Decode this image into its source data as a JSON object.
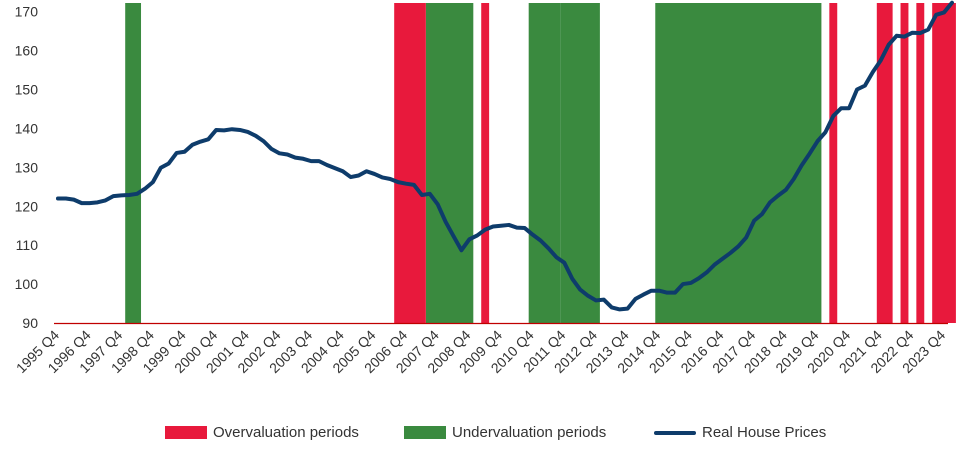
{
  "chart_data": {
    "type": "line",
    "title": "",
    "xlabel": "",
    "ylabel": "",
    "ylim": [
      90,
      173
    ],
    "y_ticks": [
      90,
      100,
      110,
      120,
      130,
      140,
      150,
      160,
      170
    ],
    "x_tick_labels": [
      "1995 Q4",
      "1996 Q4",
      "1997 Q4",
      "1998 Q4",
      "1999 Q4",
      "2000 Q4",
      "2001 Q4",
      "2002 Q4",
      "2003 Q4",
      "2004 Q4",
      "2005 Q4",
      "2006 Q4",
      "2007 Q4",
      "2008 Q4",
      "2009 Q4",
      "2010 Q4",
      "2011 Q4",
      "2012 Q4",
      "2013 Q4",
      "2014 Q4",
      "2015 Q4",
      "2016 Q4",
      "2017 Q4",
      "2018 Q4",
      "2019 Q4",
      "2020 Q4",
      "2021 Q4",
      "2022 Q4",
      "2023 Q4"
    ],
    "grid": false,
    "legend_position": "bottom",
    "colors": {
      "overvaluation": "#e8193c",
      "undervaluation": "#3a8a3f",
      "line": "#0e3c6b",
      "axis": "#c00000"
    },
    "series": [
      {
        "name": "Real House Prices",
        "type": "line",
        "points": [
          [
            "1995 Q4",
            122
          ],
          [
            "1996 Q1",
            122
          ],
          [
            "1996 Q2",
            121.7
          ],
          [
            "1996 Q3",
            120.8
          ],
          [
            "1996 Q4",
            120.8
          ],
          [
            "1997 Q1",
            121
          ],
          [
            "1997 Q2",
            121.5
          ],
          [
            "1997 Q3",
            122.6
          ],
          [
            "1997 Q4",
            122.8
          ],
          [
            "1998 Q1",
            122.9
          ],
          [
            "1998 Q2",
            123.2
          ],
          [
            "1998 Q3",
            124.5
          ],
          [
            "1998 Q4",
            126.2
          ],
          [
            "1999 Q1",
            129.9
          ],
          [
            "1999 Q2",
            131
          ],
          [
            "1999 Q3",
            133.7
          ],
          [
            "1999 Q4",
            134
          ],
          [
            "2000 Q1",
            135.8
          ],
          [
            "2000 Q2",
            136.6
          ],
          [
            "2000 Q3",
            137.2
          ],
          [
            "2000 Q4",
            139.6
          ],
          [
            "2001 Q1",
            139.5
          ],
          [
            "2001 Q2",
            139.8
          ],
          [
            "2001 Q3",
            139.6
          ],
          [
            "2001 Q4",
            139.1
          ],
          [
            "2002 Q1",
            138.1
          ],
          [
            "2002 Q2",
            136.7
          ],
          [
            "2002 Q3",
            134.7
          ],
          [
            "2002 Q4",
            133.6
          ],
          [
            "2003 Q1",
            133.3
          ],
          [
            "2003 Q2",
            132.5
          ],
          [
            "2003 Q3",
            132.2
          ],
          [
            "2003 Q4",
            131.6
          ],
          [
            "2004 Q1",
            131.6
          ],
          [
            "2004 Q2",
            130.6
          ],
          [
            "2004 Q3",
            129.8
          ],
          [
            "2004 Q4",
            129
          ],
          [
            "2005 Q1",
            127.5
          ],
          [
            "2005 Q2",
            127.9
          ],
          [
            "2005 Q3",
            129
          ],
          [
            "2005 Q4",
            128.3
          ],
          [
            "2006 Q1",
            127.4
          ],
          [
            "2006 Q2",
            127
          ],
          [
            "2006 Q3",
            126.2
          ],
          [
            "2006 Q4",
            125.8
          ],
          [
            "2007 Q1",
            125.5
          ],
          [
            "2007 Q2",
            122.9
          ],
          [
            "2007 Q3",
            123.2
          ],
          [
            "2007 Q4",
            120.5
          ],
          [
            "2008 Q1",
            116
          ],
          [
            "2008 Q2",
            112.3
          ],
          [
            "2008 Q3",
            108.7
          ],
          [
            "2008 Q4",
            111.5
          ],
          [
            "2009 Q1",
            112.5
          ],
          [
            "2009 Q2",
            114
          ],
          [
            "2009 Q3",
            114.8
          ],
          [
            "2009 Q4",
            115
          ],
          [
            "2010 Q1",
            115.2
          ],
          [
            "2010 Q2",
            114.5
          ],
          [
            "2010 Q3",
            114.4
          ],
          [
            "2010 Q4",
            112.7
          ],
          [
            "2011 Q1",
            111.2
          ],
          [
            "2011 Q2",
            109.2
          ],
          [
            "2011 Q3",
            106.9
          ],
          [
            "2011 Q4",
            105.5
          ],
          [
            "2012 Q1",
            101.4
          ],
          [
            "2012 Q2",
            98.6
          ],
          [
            "2012 Q3",
            97
          ],
          [
            "2012 Q4",
            95.8
          ],
          [
            "2013 Q1",
            96
          ],
          [
            "2013 Q2",
            94
          ],
          [
            "2013 Q3",
            93.5
          ],
          [
            "2013 Q4",
            93.7
          ],
          [
            "2014 Q1",
            96.2
          ],
          [
            "2014 Q2",
            97.3
          ],
          [
            "2014 Q3",
            98.3
          ],
          [
            "2014 Q4",
            98.3
          ],
          [
            "2015 Q1",
            97.8
          ],
          [
            "2015 Q2",
            97.8
          ],
          [
            "2015 Q3",
            100
          ],
          [
            "2015 Q4",
            100.3
          ],
          [
            "2016 Q1",
            101.5
          ],
          [
            "2016 Q2",
            103
          ],
          [
            "2016 Q3",
            105
          ],
          [
            "2016 Q4",
            106.5
          ],
          [
            "2017 Q1",
            108
          ],
          [
            "2017 Q2",
            109.7
          ],
          [
            "2017 Q3",
            112
          ],
          [
            "2017 Q4",
            116.3
          ],
          [
            "2018 Q1",
            118
          ],
          [
            "2018 Q2",
            121
          ],
          [
            "2018 Q3",
            122.7
          ],
          [
            "2018 Q4",
            124.2
          ],
          [
            "2019 Q1",
            127
          ],
          [
            "2019 Q2",
            130.5
          ],
          [
            "2019 Q3",
            133.5
          ],
          [
            "2019 Q4",
            136.7
          ],
          [
            "2020 Q1",
            139
          ],
          [
            "2020 Q2",
            143.2
          ],
          [
            "2020 Q3",
            145.2
          ],
          [
            "2020 Q4",
            145.2
          ],
          [
            "2021 Q1",
            150
          ],
          [
            "2021 Q2",
            151
          ],
          [
            "2021 Q3",
            154.5
          ],
          [
            "2021 Q4",
            157.5
          ],
          [
            "2022 Q1",
            161.5
          ],
          [
            "2022 Q2",
            163.8
          ],
          [
            "2022 Q3",
            163.6
          ],
          [
            "2022 Q4",
            164.6
          ],
          [
            "2023 Q1",
            164.5
          ],
          [
            "2023 Q2",
            165.4
          ],
          [
            "2023 Q3",
            169.2
          ],
          [
            "2023 Q4",
            169.8
          ],
          [
            "2024 Q1",
            172.3
          ]
        ]
      },
      {
        "name": "Overvaluation periods",
        "type": "bands",
        "ranges": [
          [
            "2006 Q3",
            "2007 Q2"
          ],
          [
            "2009 Q2",
            "2009 Q2"
          ],
          [
            "2020 Q2",
            "2020 Q2"
          ],
          [
            "2021 Q4",
            "2022 Q1"
          ],
          [
            "2022 Q3",
            "2022 Q3"
          ],
          [
            "2023 Q1",
            "2023 Q1"
          ],
          [
            "2023 Q3",
            "2024 Q1"
          ]
        ]
      },
      {
        "name": "Undervaluation periods",
        "type": "bands",
        "ranges": [
          [
            "1998 Q1",
            "1998 Q2"
          ],
          [
            "2007 Q3",
            "2008 Q4"
          ],
          [
            "2010 Q4",
            "2011 Q3"
          ],
          [
            "2011 Q4",
            "2012 Q4"
          ],
          [
            "2014 Q4",
            "2019 Q4"
          ]
        ]
      }
    ]
  },
  "legend": {
    "overvaluation_label": "Overvaluation periods",
    "undervaluation_label": "Undervaluation periods",
    "line_label": "Real House Prices"
  }
}
